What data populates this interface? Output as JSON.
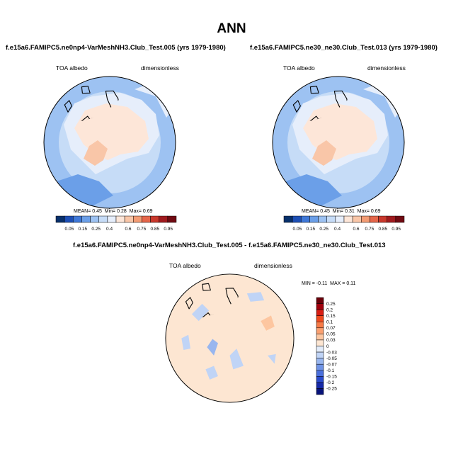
{
  "figure": {
    "title": "ANN"
  },
  "chart_data": [
    {
      "type": "heatmap",
      "projection": "north-polar-stereographic",
      "title": "f.e15a6.FAMIPC5.ne0np4-VarMeshNH3.Club_Test.005 (yrs 1979-1980)",
      "left_label": "TOA albedo",
      "right_label": "dimensionless",
      "stats": {
        "mean_label": "MEAN=",
        "mean": "0.45",
        "min_label": "Min=",
        "min": "0.28",
        "max_label": "Max=",
        "max": "0.69"
      },
      "colorbar": {
        "ticks": [
          "0.05",
          "0.15",
          "0.25",
          "0.4",
          "0.6",
          "0.75",
          "0.85",
          "0.95"
        ],
        "colors": [
          "#08306b",
          "#1d4fb5",
          "#3f78d8",
          "#6b9fe8",
          "#9dc2f2",
          "#c6dcf7",
          "#e6eefb",
          "#fde6d8",
          "#f9c6a8",
          "#f39c74",
          "#e5664a",
          "#c9382c",
          "#a01a1e",
          "#700a12"
        ]
      }
    },
    {
      "type": "heatmap",
      "projection": "north-polar-stereographic",
      "title": "f.e15a6.FAMIPC5.ne30_ne30.Club_Test.013 (yrs 1979-1980)",
      "left_label": "TOA albedo",
      "right_label": "dimensionless",
      "stats": {
        "mean_label": "MEAN=",
        "mean": "0.45",
        "min_label": "Min=",
        "min": "0.31",
        "max_label": "Max=",
        "max": "0.69"
      },
      "colorbar": {
        "ticks": [
          "0.05",
          "0.15",
          "0.25",
          "0.4",
          "0.6",
          "0.75",
          "0.85",
          "0.95"
        ],
        "colors": [
          "#08306b",
          "#1d4fb5",
          "#3f78d8",
          "#6b9fe8",
          "#9dc2f2",
          "#c6dcf7",
          "#e6eefb",
          "#fde6d8",
          "#f9c6a8",
          "#f39c74",
          "#e5664a",
          "#c9382c",
          "#a01a1e",
          "#700a12"
        ]
      }
    },
    {
      "type": "heatmap",
      "projection": "north-polar-stereographic",
      "title": "f.e15a6.FAMIPC5.ne0np4-VarMeshNH3.Club_Test.005 - f.e15a6.FAMIPC5.ne30_ne30.Club_Test.013",
      "left_label": "TOA albedo",
      "right_label": "dimensionless",
      "stats": {
        "min_label": "MIN =",
        "min": "-0.11",
        "max_label": "MAX =",
        "max": "0.11"
      },
      "colorbar": {
        "orientation": "vertical",
        "ticks": [
          "0.25",
          "0.2",
          "0.15",
          "0.1",
          "0.07",
          "0.05",
          "0.03",
          "0",
          "-0.03",
          "-0.05",
          "-0.07",
          "-0.1",
          "-0.15",
          "-0.2",
          "-0.25"
        ],
        "colors": [
          "#6b0009",
          "#a0000c",
          "#d81d12",
          "#f04a1e",
          "#f77a46",
          "#fba070",
          "#fdc6a0",
          "#fde6d2",
          "#e3ecfa",
          "#c0d4f6",
          "#98b6ef",
          "#6f93e6",
          "#4a6fdc",
          "#2a4bcc",
          "#1528a8",
          "#07127a"
        ]
      }
    }
  ]
}
